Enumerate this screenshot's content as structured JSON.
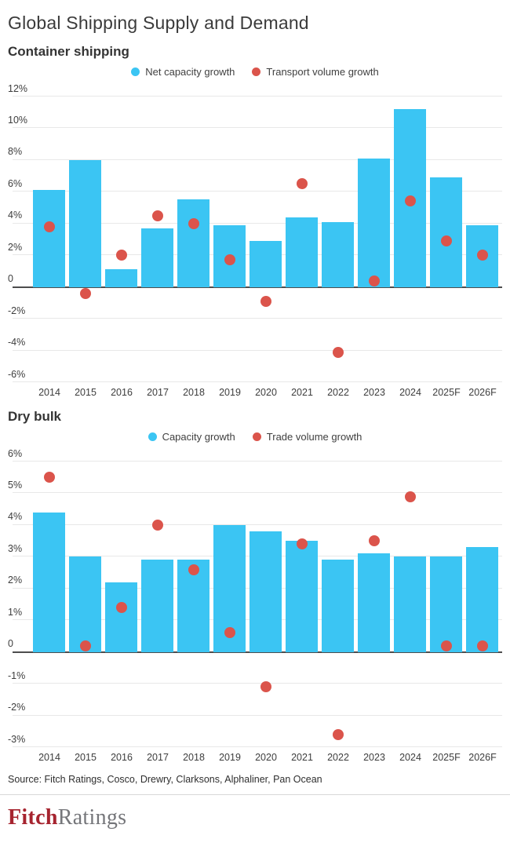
{
  "page": {
    "title": "Global Shipping Supply and Demand"
  },
  "colors": {
    "bar_blue": "#3bc5f3",
    "dot_red": "#db544b"
  },
  "charts": [
    {
      "subtitle": "Container shipping",
      "legend": [
        {
          "name": "Net capacity growth",
          "color": "#3bc5f3"
        },
        {
          "name": "Transport volume growth",
          "color": "#db544b"
        }
      ],
      "chart_data": {
        "type": "bar",
        "title": "Container shipping",
        "categories": [
          "2014",
          "2015",
          "2016",
          "2017",
          "2018",
          "2019",
          "2020",
          "2021",
          "2022",
          "2023",
          "2024",
          "2025F",
          "2026F"
        ],
        "series": [
          {
            "name": "Net capacity growth",
            "style": "bar",
            "values": [
              6.1,
              8.0,
              1.1,
              3.7,
              5.5,
              3.9,
              2.9,
              4.4,
              4.1,
              8.1,
              11.2,
              6.9,
              3.9
            ]
          },
          {
            "name": "Transport volume growth",
            "style": "scatter",
            "values": [
              3.8,
              -0.4,
              2.0,
              4.5,
              4.0,
              1.7,
              -0.9,
              6.5,
              -4.1,
              0.4,
              5.4,
              2.9,
              2.0
            ]
          }
        ],
        "xlabel": "",
        "ylabel": "",
        "ylim": [
          -6,
          12
        ],
        "ytick_values": [
          12,
          10,
          8,
          6,
          4,
          2,
          0,
          -2,
          -4,
          -6
        ],
        "ytick_labels": [
          "12%",
          "10%",
          "8%",
          "6%",
          "4%",
          "2%",
          "0",
          "-2%",
          "-4%",
          "-6%"
        ],
        "grid": true,
        "legend_position": "top-center"
      }
    },
    {
      "subtitle": "Dry bulk",
      "legend": [
        {
          "name": "Capacity growth",
          "color": "#3bc5f3"
        },
        {
          "name": "Trade volume growth",
          "color": "#db544b"
        }
      ],
      "chart_data": {
        "type": "bar",
        "title": "Dry bulk",
        "categories": [
          "2014",
          "2015",
          "2016",
          "2017",
          "2018",
          "2019",
          "2020",
          "2021",
          "2022",
          "2023",
          "2024",
          "2025F",
          "2026F"
        ],
        "series": [
          {
            "name": "Capacity growth",
            "style": "bar",
            "values": [
              4.4,
              3.0,
              2.2,
              2.9,
              2.9,
              4.0,
              3.8,
              3.5,
              2.9,
              3.1,
              3.0,
              3.0,
              3.3
            ]
          },
          {
            "name": "Trade volume growth",
            "style": "scatter",
            "values": [
              5.5,
              0.2,
              1.4,
              4.0,
              2.6,
              0.6,
              -1.1,
              3.4,
              -2.6,
              3.5,
              4.9,
              0.2,
              0.2
            ]
          }
        ],
        "xlabel": "",
        "ylabel": "",
        "ylim": [
          -3,
          6
        ],
        "ytick_values": [
          6,
          5,
          4,
          3,
          2,
          1,
          0,
          -1,
          -2,
          -3
        ],
        "ytick_labels": [
          "6%",
          "5%",
          "4%",
          "3%",
          "2%",
          "1%",
          "0",
          "-1%",
          "-2%",
          "-3%"
        ],
        "grid": true,
        "legend_position": "top-center"
      }
    }
  ],
  "footer": {
    "source": "Source: Fitch Ratings, Cosco, Drewry, Clarksons, Alphaliner, Pan Ocean",
    "logo_fitch": "Fitch",
    "logo_ratings": "Ratings"
  }
}
